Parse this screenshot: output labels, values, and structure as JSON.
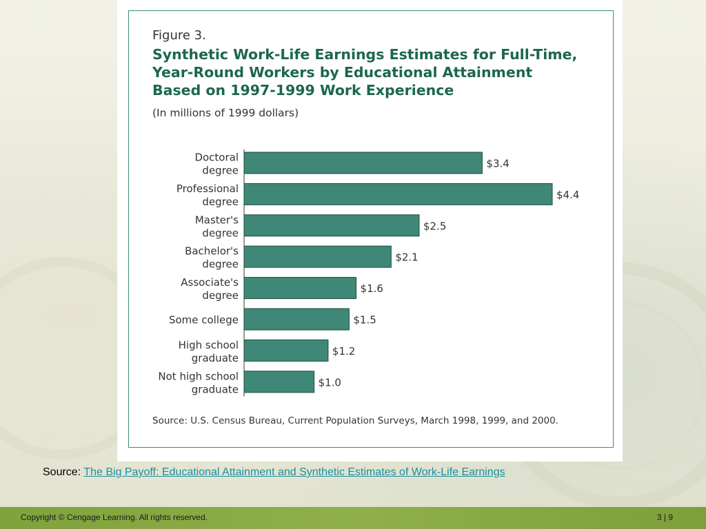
{
  "colors": {
    "bar_fill": "#3f8878",
    "bar_stroke": "#1e4a40",
    "title": "#1c6650",
    "link": "#1a8fa0",
    "footer": "#86a843"
  },
  "figure": {
    "label": "Figure 3.",
    "title_lines": [
      "Synthetic Work-Life Earnings Estimates for Full-Time,",
      "Year-Round Workers by Educational Attainment",
      "Based on 1997-1999 Work Experience"
    ],
    "units": "(In millions of 1999 dollars)",
    "source": "Source: U.S. Census Bureau, Current Population Surveys, March 1998, 1999, and 2000."
  },
  "chart_data": {
    "type": "bar",
    "orientation": "horizontal",
    "title": "Synthetic Work-Life Earnings Estimates for Full-Time, Year-Round Workers by Educational Attainment Based on 1997-1999 Work Experience",
    "ylabel": "",
    "xlabel": "",
    "xlim": [
      0,
      4.4
    ],
    "grid": false,
    "categories": [
      [
        "Doctoral",
        "degree"
      ],
      [
        "Professional",
        "degree"
      ],
      [
        "Master's",
        "degree"
      ],
      [
        "Bachelor's",
        "degree"
      ],
      [
        "Associate's",
        "degree"
      ],
      [
        "Some  college"
      ],
      [
        "High school",
        "graduate"
      ],
      [
        "Not high school",
        "graduate"
      ]
    ],
    "values": [
      3.4,
      4.4,
      2.5,
      2.1,
      1.6,
      1.5,
      1.2,
      1.0
    ],
    "value_labels": [
      "$3.4",
      "$4.4",
      "$2.5",
      "$2.1",
      "$1.6",
      "$1.5",
      "$1.2",
      "$1.0"
    ]
  },
  "slide": {
    "source_prefix": "Source: ",
    "source_link": "The Big Payoff: Educational Attainment and Synthetic Estimates of Work-Life Earnings",
    "copyright": "Copyright © Cengage Learning. All rights reserved.",
    "page": "3 | 9"
  }
}
